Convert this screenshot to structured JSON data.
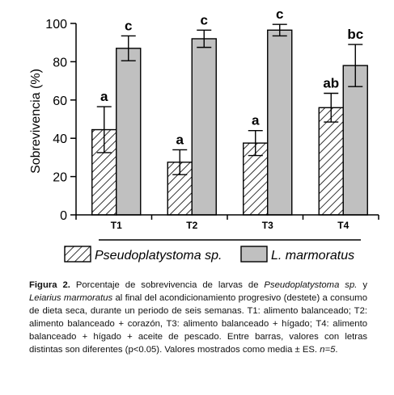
{
  "chart_data": {
    "type": "bar",
    "ylabel": "Sobrevivencia (%)",
    "ylim": [
      0,
      100
    ],
    "yticks": [
      0,
      20,
      40,
      60,
      80,
      100
    ],
    "categories": [
      "T1",
      "T2",
      "T3",
      "T4"
    ],
    "series": [
      {
        "name": "Pseudoplatystoma sp.",
        "pattern": "hatched",
        "values": [
          44.5,
          27.5,
          37.5,
          56
        ],
        "errors": [
          12,
          6.5,
          6.5,
          7.5
        ],
        "letters": [
          "a",
          "a",
          "a",
          "ab"
        ]
      },
      {
        "name": "L. marmoratus",
        "color": "#c0c0c0",
        "values": [
          87,
          92,
          96.5,
          78
        ],
        "errors": [
          6.5,
          4.5,
          3,
          11
        ],
        "letters": [
          "c",
          "c",
          "c",
          "bc"
        ]
      }
    ]
  },
  "caption": {
    "label": "Figura 2.",
    "t1": " Porcentaje de sobrevivencia de larvas de ",
    "i1": "Pseudoplatystoma sp.",
    "t2": " y ",
    "i2": "Leiarius marmoratus",
    "t3": " al final del acondicionamiento progresivo (destete) a consumo de dieta seca, durante un periodo de seis semanas. T1: alimento balanceado; T2: alimento balanceado + corazón, T3: alimento balanceado + hígado; T4: alimento balanceado + hígado + aceite de pescado. Entre barras, valores con letras distintas son diferentes (p<0.05). Valores mostrados como media ± ES. ",
    "i3": "n=5",
    "t4": "."
  }
}
